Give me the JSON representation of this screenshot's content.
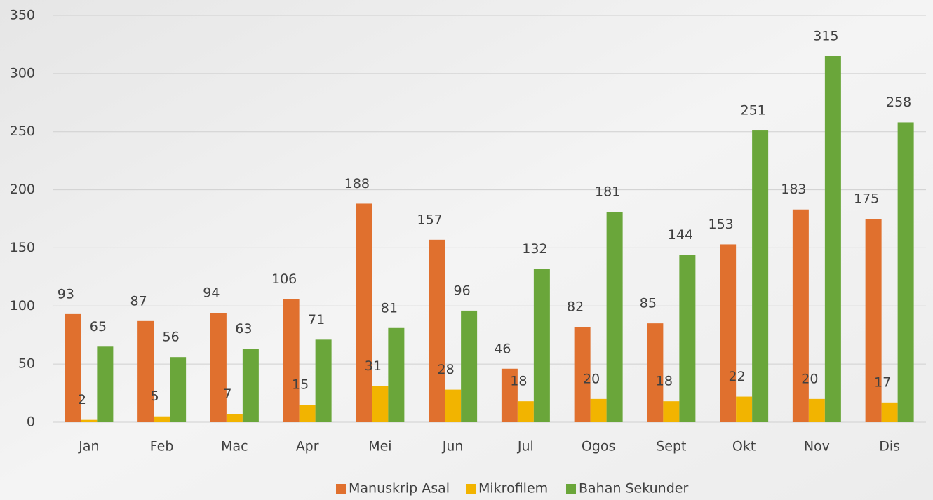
{
  "chart_data": {
    "type": "bar",
    "categories": [
      "Jan",
      "Feb",
      "Mac",
      "Apr",
      "Mei",
      "Jun",
      "Jul",
      "Ogos",
      "Sept",
      "Okt",
      "Nov",
      "Dis"
    ],
    "series": [
      {
        "name": "Manuskrip Asal",
        "color": "#e0702e",
        "values": [
          93,
          87,
          94,
          106,
          188,
          157,
          46,
          82,
          85,
          153,
          183,
          175
        ]
      },
      {
        "name": "Mikrofilem",
        "color": "#f2b400",
        "values": [
          2,
          5,
          7,
          15,
          31,
          28,
          18,
          20,
          18,
          22,
          20,
          17
        ]
      },
      {
        "name": "Bahan Sekunder",
        "color": "#6aa63a",
        "values": [
          65,
          56,
          63,
          71,
          81,
          96,
          132,
          181,
          144,
          251,
          315,
          258
        ]
      }
    ],
    "ylim": [
      0,
      350
    ],
    "yticks": [
      0,
      50,
      100,
      150,
      200,
      250,
      300,
      350
    ],
    "grid": true,
    "legend": "bottom"
  }
}
